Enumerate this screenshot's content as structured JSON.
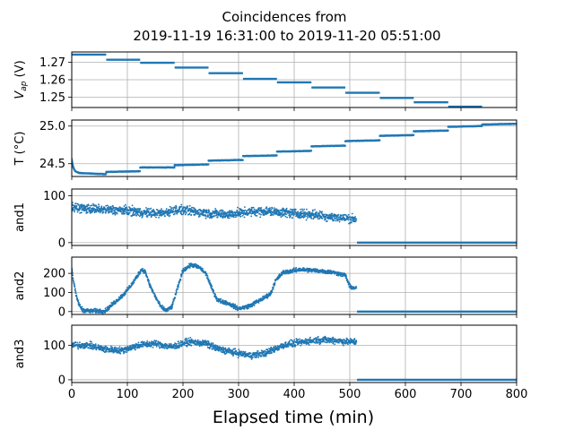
{
  "chart_data": [
    {
      "type": "line",
      "title": "Coincidences from\n2019-11-19 16:31:00 to 2019-11-20 05:51:00",
      "ylabel": "V_ap (V)",
      "xlabel": "",
      "xlim": [
        0,
        800
      ],
      "ylim": [
        1.244,
        1.276
      ],
      "grid": true,
      "yticks": [
        1.25,
        1.26,
        1.27
      ],
      "ytick_labels": [
        "1.25",
        "1.26",
        "1.27"
      ],
      "segments": [
        {
          "x": [
            0,
            62
          ],
          "y": 1.2745
        },
        {
          "x": [
            62,
            123
          ],
          "y": 1.2715
        },
        {
          "x": [
            123,
            185
          ],
          "y": 1.2698
        },
        {
          "x": [
            185,
            246
          ],
          "y": 1.267
        },
        {
          "x": [
            246,
            308
          ],
          "y": 1.2638
        },
        {
          "x": [
            308,
            369
          ],
          "y": 1.2605
        },
        {
          "x": [
            369,
            431
          ],
          "y": 1.2585
        },
        {
          "x": [
            431,
            492
          ],
          "y": 1.2555
        },
        {
          "x": [
            492,
            554
          ],
          "y": 1.2525
        },
        {
          "x": [
            554,
            615
          ],
          "y": 1.2495
        },
        {
          "x": [
            615,
            677
          ],
          "y": 1.247
        },
        {
          "x": [
            677,
            738
          ],
          "y": 1.2445
        }
      ]
    },
    {
      "type": "scatter",
      "ylabel": "T (°C)",
      "xlabel": "",
      "xlim": [
        0,
        800
      ],
      "ylim": [
        24.33,
        25.08
      ],
      "grid": true,
      "yticks": [
        24.5,
        25.0
      ],
      "ytick_labels": [
        "24.5",
        "25.0"
      ],
      "steps": [
        {
          "x": [
            0,
            62
          ],
          "y0": 24.38,
          "y1": 24.36
        },
        {
          "x": [
            62,
            123
          ],
          "y0": 24.39,
          "y1": 24.4
        },
        {
          "x": [
            123,
            185
          ],
          "y0": 24.45,
          "y1": 24.45
        },
        {
          "x": [
            185,
            246
          ],
          "y0": 24.48,
          "y1": 24.49
        },
        {
          "x": [
            246,
            308
          ],
          "y0": 24.54,
          "y1": 24.55
        },
        {
          "x": [
            308,
            369
          ],
          "y0": 24.6,
          "y1": 24.61
        },
        {
          "x": [
            369,
            431
          ],
          "y0": 24.66,
          "y1": 24.67
        },
        {
          "x": [
            431,
            492
          ],
          "y0": 24.73,
          "y1": 24.74
        },
        {
          "x": [
            492,
            554
          ],
          "y0": 24.8,
          "y1": 24.81
        },
        {
          "x": [
            554,
            615
          ],
          "y0": 24.87,
          "y1": 24.88
        },
        {
          "x": [
            615,
            677
          ],
          "y0": 24.93,
          "y1": 24.94
        },
        {
          "x": [
            677,
            738
          ],
          "y0": 24.99,
          "y1": 25.0
        },
        {
          "x": [
            738,
            800
          ],
          "y0": 25.02,
          "y1": 25.03
        }
      ],
      "initial_transient": {
        "x": [
          0,
          12
        ],
        "y_start": 24.56,
        "y_end": 24.38
      }
    },
    {
      "type": "scatter",
      "ylabel": "and1",
      "xlabel": "",
      "xlim": [
        0,
        800
      ],
      "ylim": [
        -6,
        114
      ],
      "grid": true,
      "yticks": [
        0,
        100
      ],
      "ytick_labels": [
        "0",
        "100"
      ],
      "trend": [
        {
          "x": 0,
          "y": 75
        },
        {
          "x": 30,
          "y": 72
        },
        {
          "x": 60,
          "y": 70
        },
        {
          "x": 90,
          "y": 69
        },
        {
          "x": 130,
          "y": 64
        },
        {
          "x": 160,
          "y": 62
        },
        {
          "x": 190,
          "y": 70
        },
        {
          "x": 220,
          "y": 66
        },
        {
          "x": 250,
          "y": 62
        },
        {
          "x": 280,
          "y": 60
        },
        {
          "x": 310,
          "y": 64
        },
        {
          "x": 340,
          "y": 67
        },
        {
          "x": 370,
          "y": 65
        },
        {
          "x": 400,
          "y": 62
        },
        {
          "x": 430,
          "y": 60
        },
        {
          "x": 460,
          "y": 56
        },
        {
          "x": 490,
          "y": 52
        },
        {
          "x": 512,
          "y": 50
        }
      ],
      "spread": 14,
      "after_x": 513,
      "after_y": 0
    },
    {
      "type": "scatter",
      "ylabel": "and2",
      "xlabel": "",
      "xlim": [
        0,
        800
      ],
      "ylim": [
        -15,
        285
      ],
      "grid": true,
      "yticks": [
        0,
        100,
        200
      ],
      "ytick_labels": [
        "0",
        "100",
        "200"
      ],
      "trend": [
        {
          "x": 0,
          "y": 230
        },
        {
          "x": 3,
          "y": 160
        },
        {
          "x": 8,
          "y": 80
        },
        {
          "x": 14,
          "y": 30
        },
        {
          "x": 20,
          "y": 8
        },
        {
          "x": 30,
          "y": 3
        },
        {
          "x": 60,
          "y": 3
        },
        {
          "x": 68,
          "y": 25
        },
        {
          "x": 80,
          "y": 55
        },
        {
          "x": 95,
          "y": 95
        },
        {
          "x": 110,
          "y": 150
        },
        {
          "x": 125,
          "y": 220
        },
        {
          "x": 132,
          "y": 210
        },
        {
          "x": 140,
          "y": 140
        },
        {
          "x": 150,
          "y": 80
        },
        {
          "x": 160,
          "y": 25
        },
        {
          "x": 170,
          "y": 5
        },
        {
          "x": 180,
          "y": 25
        },
        {
          "x": 190,
          "y": 120
        },
        {
          "x": 200,
          "y": 215
        },
        {
          "x": 215,
          "y": 245
        },
        {
          "x": 230,
          "y": 230
        },
        {
          "x": 242,
          "y": 195
        },
        {
          "x": 252,
          "y": 120
        },
        {
          "x": 262,
          "y": 60
        },
        {
          "x": 280,
          "y": 45
        },
        {
          "x": 300,
          "y": 15
        },
        {
          "x": 320,
          "y": 30
        },
        {
          "x": 345,
          "y": 70
        },
        {
          "x": 358,
          "y": 95
        },
        {
          "x": 366,
          "y": 160
        },
        {
          "x": 380,
          "y": 205
        },
        {
          "x": 410,
          "y": 220
        },
        {
          "x": 440,
          "y": 215
        },
        {
          "x": 470,
          "y": 205
        },
        {
          "x": 492,
          "y": 190
        },
        {
          "x": 500,
          "y": 130
        },
        {
          "x": 512,
          "y": 120
        }
      ],
      "spread": 16,
      "after_x": 513,
      "after_y": 0
    },
    {
      "type": "scatter",
      "ylabel": "and3",
      "xlabel": "Elapsed time (min)",
      "xlim": [
        0,
        800
      ],
      "xticks": [
        0,
        100,
        200,
        300,
        400,
        500,
        600,
        700,
        800
      ],
      "xtick_labels": [
        "0",
        "100",
        "200",
        "300",
        "400",
        "500",
        "600",
        "700",
        "800"
      ],
      "ylim": [
        -8,
        158
      ],
      "grid": true,
      "yticks": [
        0,
        100
      ],
      "ytick_labels": [
        "0",
        "100"
      ],
      "trend": [
        {
          "x": 0,
          "y": 100
        },
        {
          "x": 30,
          "y": 100
        },
        {
          "x": 60,
          "y": 88
        },
        {
          "x": 90,
          "y": 85
        },
        {
          "x": 120,
          "y": 100
        },
        {
          "x": 150,
          "y": 105
        },
        {
          "x": 180,
          "y": 95
        },
        {
          "x": 210,
          "y": 110
        },
        {
          "x": 240,
          "y": 105
        },
        {
          "x": 265,
          "y": 88
        },
        {
          "x": 290,
          "y": 80
        },
        {
          "x": 320,
          "y": 70
        },
        {
          "x": 350,
          "y": 78
        },
        {
          "x": 380,
          "y": 100
        },
        {
          "x": 410,
          "y": 108
        },
        {
          "x": 440,
          "y": 115
        },
        {
          "x": 470,
          "y": 115
        },
        {
          "x": 495,
          "y": 110
        },
        {
          "x": 512,
          "y": 110
        }
      ],
      "spread": 14,
      "after_x": 513,
      "after_y": 0
    }
  ],
  "colors": {
    "series": "#1f77b4",
    "grid": "#b0b0b0",
    "axis": "#000000"
  }
}
